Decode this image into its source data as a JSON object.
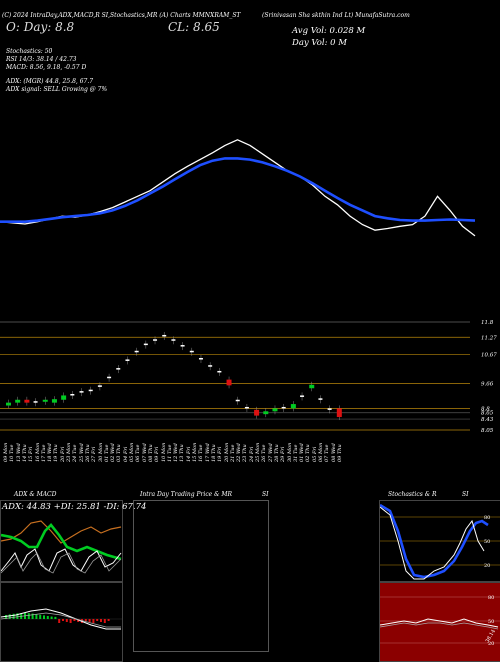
{
  "header": {
    "top_line": "(C) 2024 IntraDay,ADX,MACD,R    SI,Stochastics,MR    (A) Charts MMNXRAM_ST",
    "company": "(Srinivasan Sha          skthin Ind Lt) MunafaSutra.com",
    "open_label": "O: Day: 8.8",
    "close_label": "CL: 8.65",
    "avg_vol": "Avg Vol: 0.028  M",
    "day_vol": "Day Vol: 0  M"
  },
  "indicators": {
    "stoch": "Stochastics: 50",
    "rsi": "RSI 14/3: 38.14 / 42.73",
    "macd": "MACD: 8.56, 9.18, -0.57 D",
    "adx": "ADX:                          (MGR) 44.8, 25.8, 67.7",
    "adx_signal": "ADX  signal: SELL Growing @ 7%"
  },
  "price_axis": [
    "11.8",
    "11.27",
    "10.67",
    "9.66",
    "8.8",
    "8.65",
    "8.43",
    "8.05"
  ],
  "dates": [
    "09 Mon",
    "10 Tue",
    "13 Wed",
    "14 Thu",
    "15 Fri",
    "16 Mon",
    "17 Tue",
    "18 Wed",
    "19 Thu",
    "20 Fri",
    "23 Mon",
    "24 Tue",
    "25 Wed",
    "26 Thu",
    "27 Fri",
    "30 Mon",
    "01 Tue",
    "02 Wed",
    "03 Thu",
    "04 Fri",
    "05 Mon",
    "06 Tue",
    "07 Wed",
    "08 Thu",
    "09 Fri",
    "10 Mon",
    "11 Tue",
    "12 Wed",
    "13 Thu",
    "14 Fri",
    "15 Mon",
    "16 Tue",
    "17 Wed",
    "18 Thu",
    "19 Fri",
    "20 Mon",
    "21 Tue",
    "22 Wed",
    "23 Thu",
    "24 Fri",
    "25 Mon",
    "26 Tue",
    "27 Wed",
    "28 Thu",
    "29 Fri",
    "30 Mon",
    "31 Tue",
    "01 Wed",
    "02 Thu",
    "05 Fri",
    "06 Mon",
    "07 Tue",
    "08 Wed",
    "09 Thu"
  ],
  "panels": {
    "adx_title": "ADX  & MACD",
    "adx_values": "ADX: 44.83  +DI: 25.81  -DI: 67.74",
    "intraday_title": "Intra  Day Trading Price  & MR",
    "intraday_si": "SI",
    "stoch_title": "Stochastics & R",
    "stoch_si": "SI",
    "stoch_ticks": [
      "80",
      "50",
      "20"
    ],
    "rsi_ticks": [
      "80",
      "50",
      "20"
    ],
    "rsi_value": "38.14"
  },
  "colors": {
    "bg": "#000000",
    "white": "#ffffff",
    "blue": "#1e4fff",
    "green": "#00cc22",
    "red": "#dd1111",
    "orange": "#c87020",
    "darkred": "#8b0000",
    "band": "#b8860b"
  },
  "chart_data": {
    "type": "line",
    "series": [
      {
        "role": "price",
        "values": [
          9.0,
          8.98,
          8.96,
          9.0,
          9.05,
          9.1,
          9.08,
          9.12,
          9.18,
          9.25,
          9.35,
          9.45,
          9.55,
          9.7,
          9.85,
          9.98,
          10.1,
          10.22,
          10.35,
          10.45,
          10.35,
          10.2,
          10.05,
          9.9,
          9.8,
          9.65,
          9.45,
          9.3,
          9.1,
          8.95,
          8.85,
          8.88,
          8.92,
          8.95,
          9.1,
          9.45,
          9.2,
          8.92,
          8.75
        ]
      },
      {
        "role": "average",
        "values": [
          9.0,
          9.0,
          9.0,
          9.02,
          9.05,
          9.08,
          9.1,
          9.12,
          9.15,
          9.2,
          9.28,
          9.38,
          9.5,
          9.62,
          9.75,
          9.88,
          10.0,
          10.08,
          10.12,
          10.12,
          10.1,
          10.05,
          9.98,
          9.9,
          9.8,
          9.68,
          9.55,
          9.42,
          9.3,
          9.2,
          9.1,
          9.06,
          9.03,
          9.02,
          9.02,
          9.03,
          9.04,
          9.03,
          9.02
        ]
      }
    ],
    "candles": [
      {
        "o": 8.9,
        "c": 9.0,
        "dir": "up"
      },
      {
        "o": 9.0,
        "c": 9.1,
        "dir": "up"
      },
      {
        "o": 9.1,
        "c": 9.0,
        "dir": "down"
      },
      {
        "o": 9.05,
        "c": 9.05,
        "dir": "flat"
      },
      {
        "o": 9.05,
        "c": 9.1,
        "dir": "up"
      },
      {
        "o": 9.0,
        "c": 9.12,
        "dir": "up"
      },
      {
        "o": 9.1,
        "c": 9.25,
        "dir": "up"
      },
      {
        "o": 9.3,
        "c": 9.3,
        "dir": "flat"
      },
      {
        "o": 9.4,
        "c": 9.4,
        "dir": "flat"
      },
      {
        "o": 9.45,
        "c": 9.45,
        "dir": "flat"
      },
      {
        "o": 9.6,
        "c": 9.6,
        "dir": "flat"
      },
      {
        "o": 9.9,
        "c": 9.9,
        "dir": "flat"
      },
      {
        "o": 10.2,
        "c": 10.2,
        "dir": "flat"
      },
      {
        "o": 10.5,
        "c": 10.5,
        "dir": "flat"
      },
      {
        "o": 10.8,
        "c": 10.8,
        "dir": "flat"
      },
      {
        "o": 11.05,
        "c": 11.05,
        "dir": "flat"
      },
      {
        "o": 11.2,
        "c": 11.2,
        "dir": "flat"
      },
      {
        "o": 11.35,
        "c": 11.35,
        "dir": "flat"
      },
      {
        "o": 11.2,
        "c": 11.2,
        "dir": "flat"
      },
      {
        "o": 11.0,
        "c": 11.0,
        "dir": "flat"
      },
      {
        "o": 10.8,
        "c": 10.8,
        "dir": "flat"
      },
      {
        "o": 10.55,
        "c": 10.55,
        "dir": "flat"
      },
      {
        "o": 10.3,
        "c": 10.3,
        "dir": "flat"
      },
      {
        "o": 10.1,
        "c": 10.1,
        "dir": "flat"
      },
      {
        "o": 9.8,
        "c": 9.6,
        "dir": "down"
      },
      {
        "o": 9.1,
        "c": 9.1,
        "dir": "flat"
      },
      {
        "o": 8.85,
        "c": 8.85,
        "dir": "flat"
      },
      {
        "o": 8.75,
        "c": 8.55,
        "dir": "down"
      },
      {
        "o": 8.6,
        "c": 8.7,
        "dir": "up"
      },
      {
        "o": 8.7,
        "c": 8.8,
        "dir": "up"
      },
      {
        "o": 8.85,
        "c": 8.85,
        "dir": "flat"
      },
      {
        "o": 8.8,
        "c": 8.95,
        "dir": "up"
      },
      {
        "o": 9.25,
        "c": 9.25,
        "dir": "flat"
      },
      {
        "o": 9.5,
        "c": 9.62,
        "dir": "up"
      },
      {
        "o": 9.15,
        "c": 9.15,
        "dir": "flat"
      },
      {
        "o": 8.8,
        "c": 8.8,
        "dir": "flat"
      },
      {
        "o": 8.8,
        "c": 8.5,
        "dir": "down"
      }
    ]
  }
}
